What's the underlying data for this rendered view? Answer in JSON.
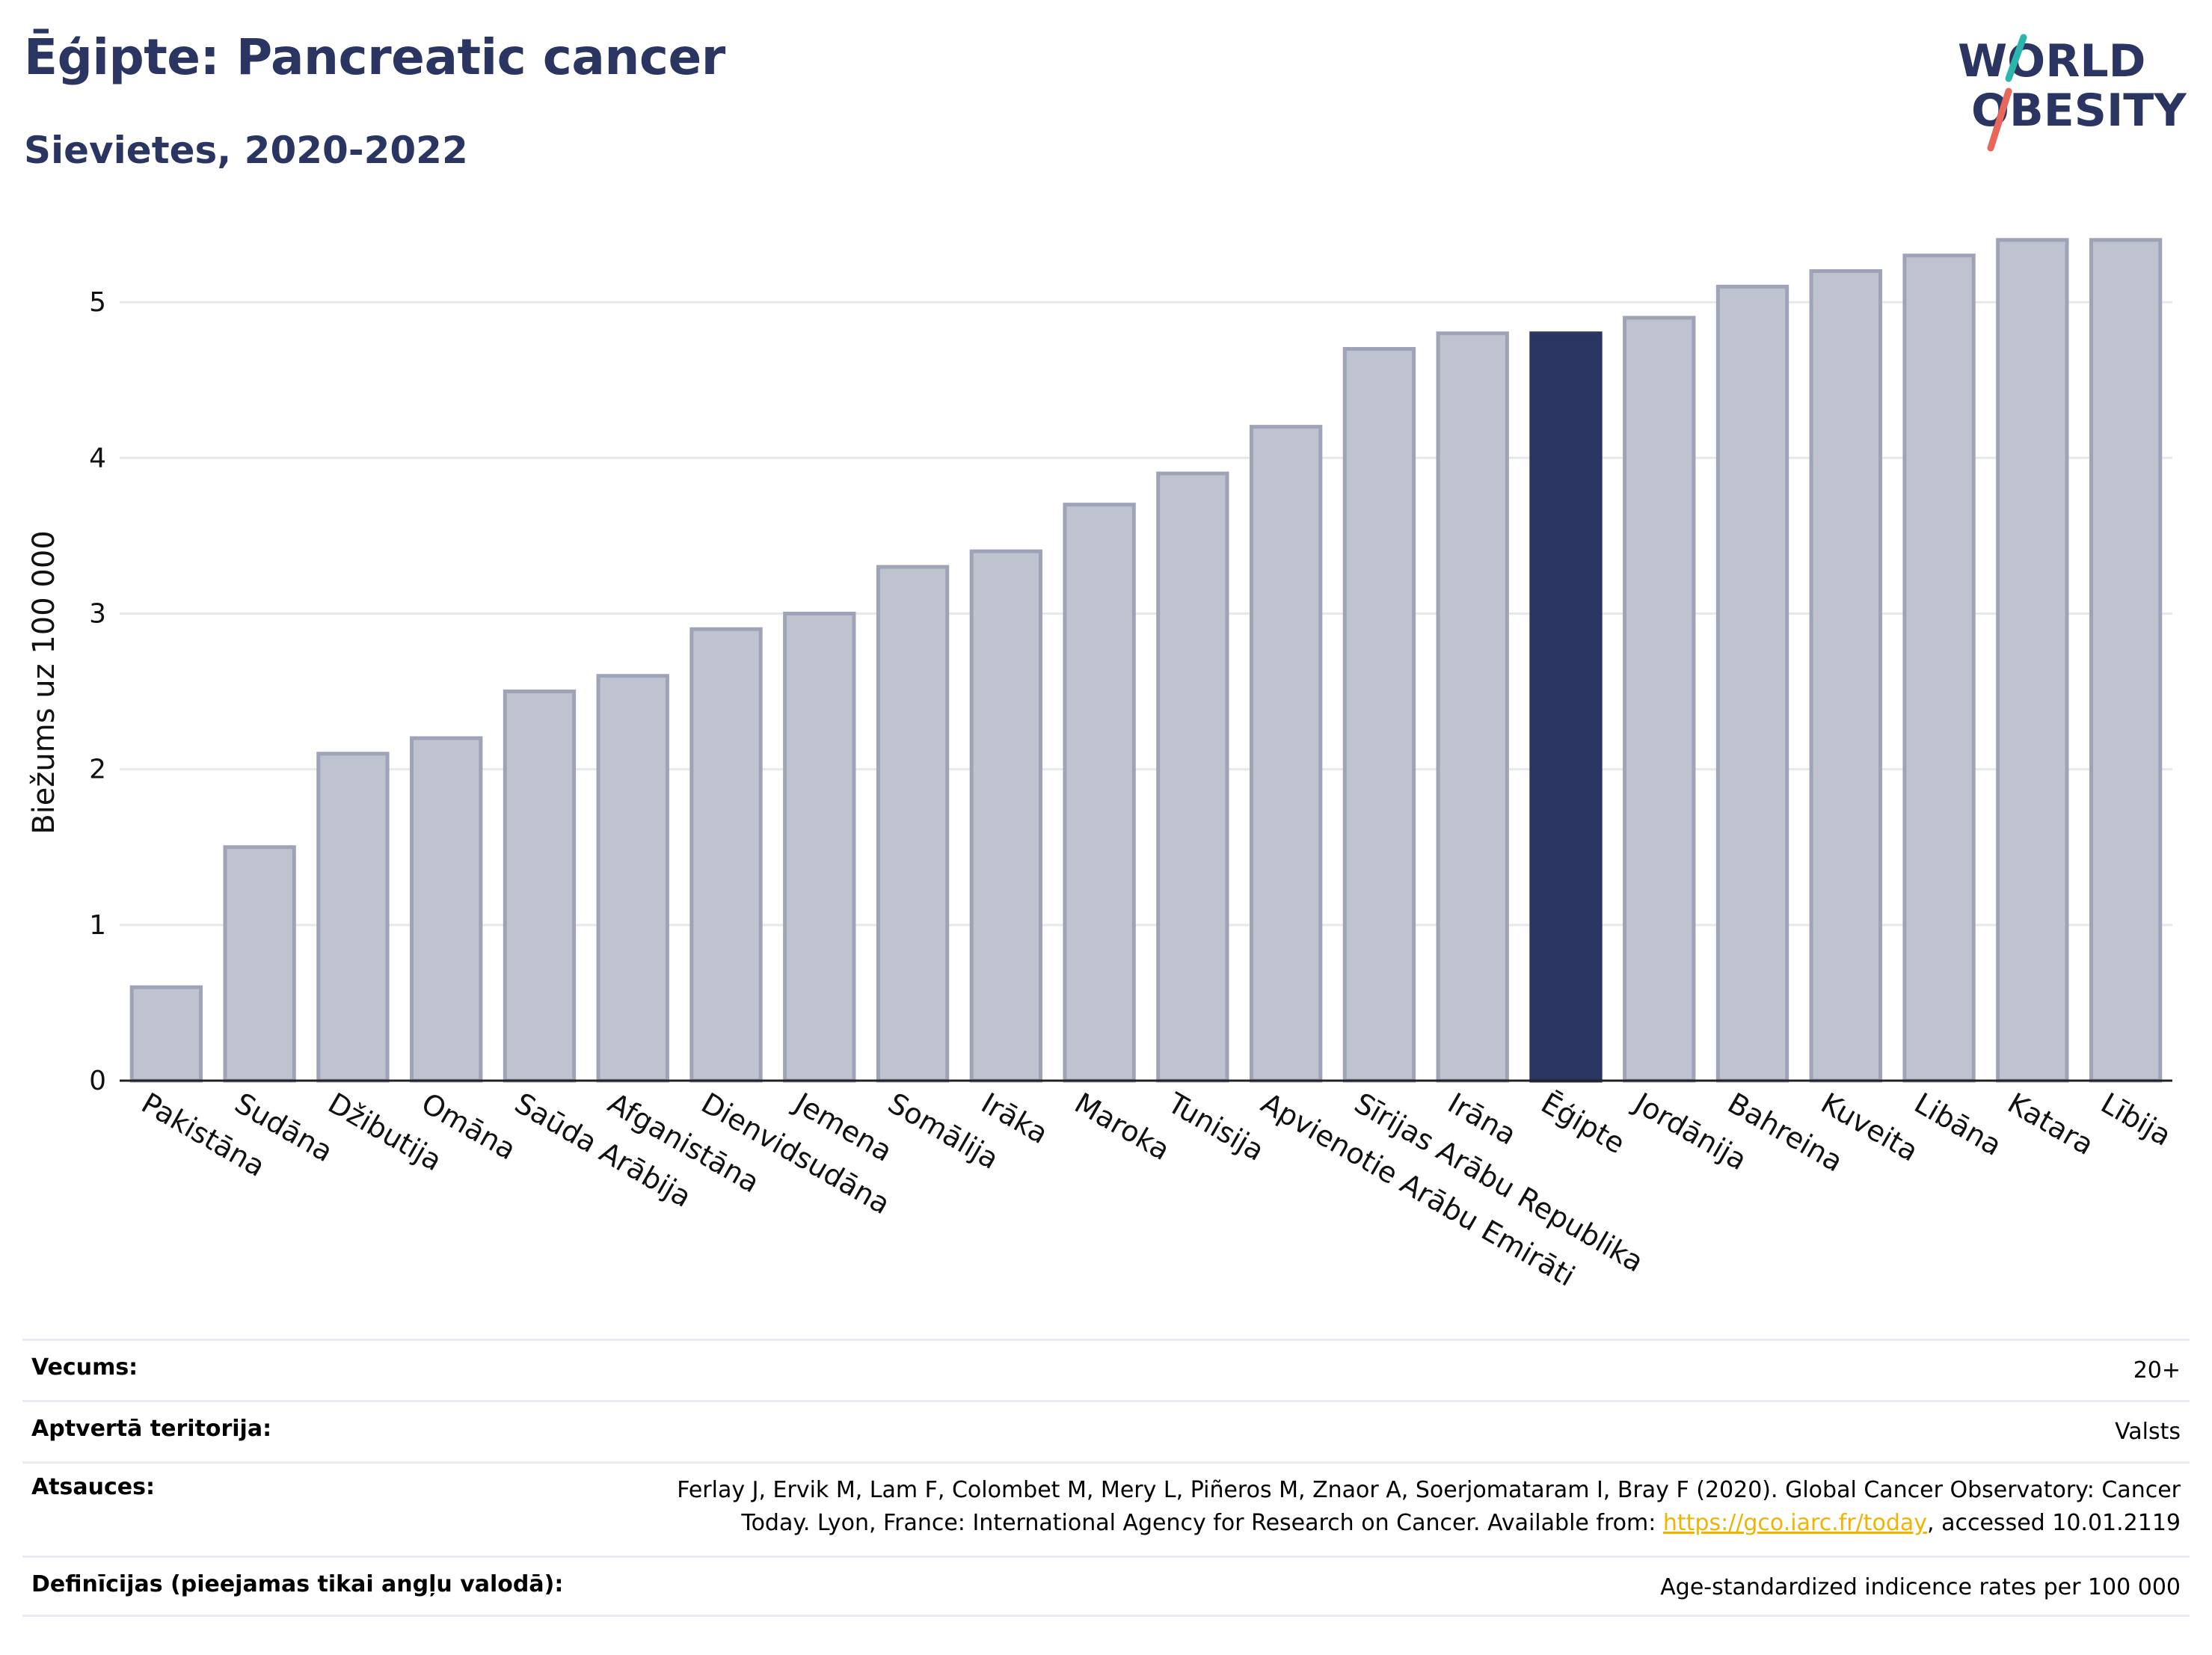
{
  "header": {
    "title": "Ēģipte: Pancreatic cancer",
    "subtitle": "Sievietes, 2020-2022"
  },
  "logo": {
    "line1": "WORLD",
    "line2": "OBESITY"
  },
  "colors": {
    "title": "#2a3561",
    "highlight_bar": "#2a3561",
    "bar": "#bfc3d0",
    "bar_stroke": "#9ea3b8",
    "grid": "#e6e8ee",
    "logo_teal": "#2bb5ad",
    "logo_red": "#e8675a",
    "link": "#f0b400"
  },
  "chart_data": {
    "type": "bar",
    "ylabel": "Biežums uz 100 000",
    "ylim": [
      0,
      5.5
    ],
    "yticks": [
      0,
      1,
      2,
      3,
      4,
      5
    ],
    "grid": true,
    "highlight": "Ēģipte",
    "categories": [
      "Pakistāna",
      "Sudāna",
      "Džibutija",
      "Omāna",
      "Saūda Arābija",
      "Afganistāna",
      "Dienvidsudāna",
      "Jemena",
      "Somālija",
      "Irāka",
      "Maroka",
      "Tunisija",
      "Apvienotie Arābu Emirāti",
      "Sīrijas Arābu Republika",
      "Irāna",
      "Ēģipte",
      "Jordānija",
      "Bahreina",
      "Kuveita",
      "Libāna",
      "Katara",
      "Lībija"
    ],
    "values": [
      0.6,
      1.5,
      2.1,
      2.2,
      2.5,
      2.6,
      2.9,
      3.0,
      3.3,
      3.4,
      3.7,
      3.9,
      4.2,
      4.7,
      4.8,
      4.8,
      4.9,
      5.1,
      5.2,
      5.3,
      5.4,
      5.4
    ]
  },
  "info": {
    "rows": [
      {
        "label": "Vecums:",
        "value": "20+"
      },
      {
        "label": "Aptvertā teritorija:",
        "value": "Valsts"
      },
      {
        "label": "Atsauces:",
        "value_line1": "Ferlay J, Ervik M, Lam F, Colombet M, Mery L, Piñeros M, Znaor A, Soerjomataram I, Bray F (2020). Global Cancer Observatory: Cancer",
        "value_line2_pre": "Today. Lyon, France: International Agency for Research on Cancer. Available from: ",
        "link": "https://gco.iarc.fr/today",
        "value_line2_post": ", accessed 10.01.2119"
      },
      {
        "label": "Definīcijas (pieejamas tikai angļu valodā):",
        "value": "Age-standardized indicence rates per 100 000"
      }
    ]
  }
}
